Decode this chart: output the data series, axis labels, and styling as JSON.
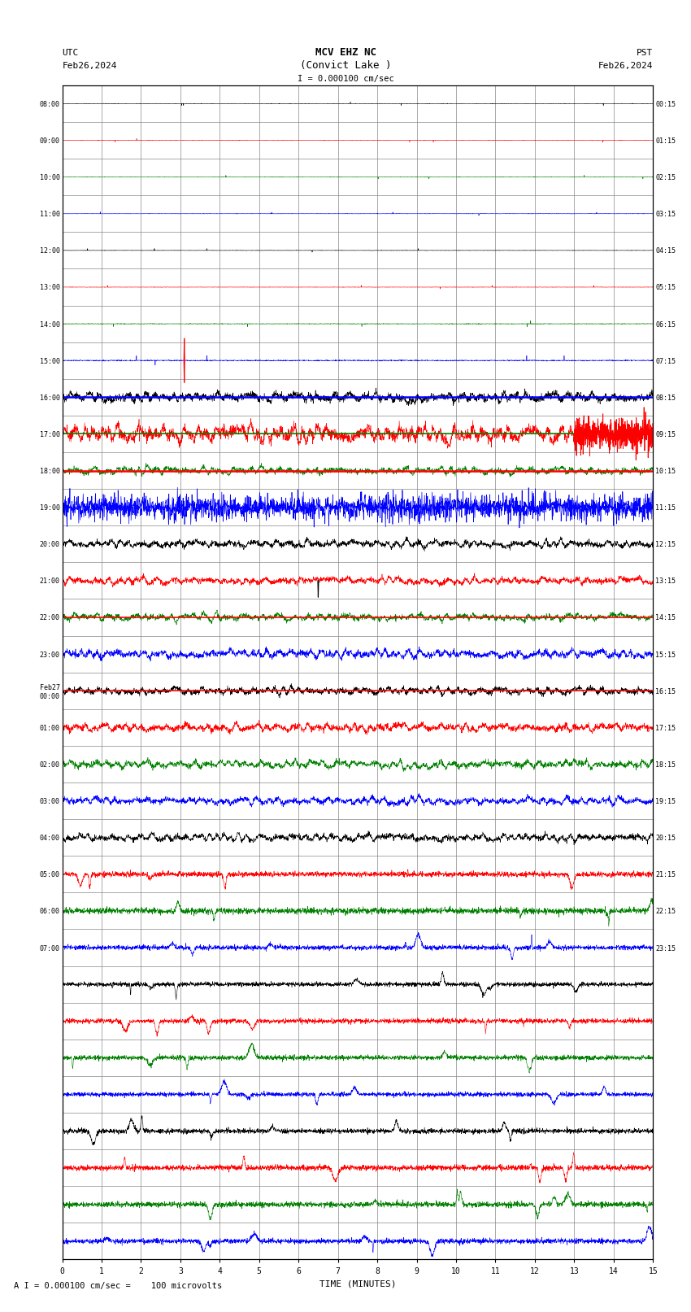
{
  "title_line1": "MCV EHZ NC",
  "title_line2": "(Convict Lake )",
  "title_line3": "I = 0.000100 cm/sec",
  "left_header_line1": "UTC",
  "left_header_line2": "Feb26,2024",
  "right_header_line1": "PST",
  "right_header_line2": "Feb26,2024",
  "xlabel": "TIME (MINUTES)",
  "footer": "A I = 0.000100 cm/sec =    100 microvolts",
  "xlim": [
    0,
    15
  ],
  "xticks": [
    0,
    1,
    2,
    3,
    4,
    5,
    6,
    7,
    8,
    9,
    10,
    11,
    12,
    13,
    14,
    15
  ],
  "bg_color": "white",
  "grid_color": "#888888",
  "trace_colors_cycle": [
    "black",
    "red",
    "green",
    "blue"
  ],
  "num_rows": 32,
  "left_times": [
    "08:00",
    "09:00",
    "10:00",
    "11:00",
    "12:00",
    "13:00",
    "14:00",
    "15:00",
    "16:00",
    "17:00",
    "18:00",
    "19:00",
    "20:00",
    "21:00",
    "22:00",
    "23:00",
    "Feb27\n00:00",
    "01:00",
    "02:00",
    "03:00",
    "04:00",
    "05:00",
    "06:00",
    "07:00",
    "",
    "",
    "",
    "",
    "",
    "",
    "",
    ""
  ],
  "right_times": [
    "00:15",
    "01:15",
    "02:15",
    "03:15",
    "04:15",
    "05:15",
    "06:15",
    "07:15",
    "08:15",
    "09:15",
    "10:15",
    "11:15",
    "12:15",
    "13:15",
    "14:15",
    "15:15",
    "16:15",
    "17:15",
    "18:15",
    "19:15",
    "20:15",
    "21:15",
    "22:15",
    "23:15",
    "",
    "",
    "",
    "",
    "",
    "",
    "",
    ""
  ],
  "noise_levels": [
    0.03,
    0.03,
    0.03,
    0.03,
    0.03,
    0.03,
    0.05,
    0.08,
    0.15,
    0.25,
    0.12,
    0.12,
    0.12,
    0.12,
    0.12,
    0.12,
    0.12,
    0.12,
    0.12,
    0.12,
    0.12,
    0.35,
    0.45,
    0.55,
    0.55,
    0.55,
    0.45,
    0.55,
    0.55,
    0.55,
    0.55,
    0.55
  ]
}
